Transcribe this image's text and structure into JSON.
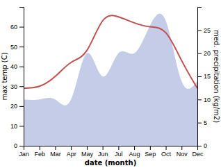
{
  "chart_data": {
    "type": "line",
    "categories": [
      "Jan",
      "Feb",
      "Mar",
      "Apr",
      "May",
      "Jun",
      "Jul",
      "Aug",
      "Sep",
      "Oct",
      "Nov",
      "Dec"
    ],
    "series": [
      {
        "type": "line",
        "color": "#c0504d",
        "values": [
          29,
          30,
          35,
          42,
          48,
          63,
          65,
          62,
          60,
          57,
          43,
          29
        ]
      },
      {
        "type": "area",
        "color": "#c5cce8",
        "axis": "y2",
        "values": [
          10,
          10,
          10,
          10,
          20,
          15,
          20,
          20,
          26,
          27,
          14,
          14
        ]
      }
    ],
    "xlabel": "date (month)",
    "ylabel": "max temp (C)",
    "y2label": "med. precipitation (kg/m2)",
    "ylim": [
      0,
      70
    ],
    "yticks": [
      0,
      10,
      20,
      30,
      40,
      50,
      60
    ],
    "y2lim": [
      0,
      30
    ],
    "y2ticks": [
      0,
      5,
      10,
      15,
      20,
      25
    ]
  }
}
